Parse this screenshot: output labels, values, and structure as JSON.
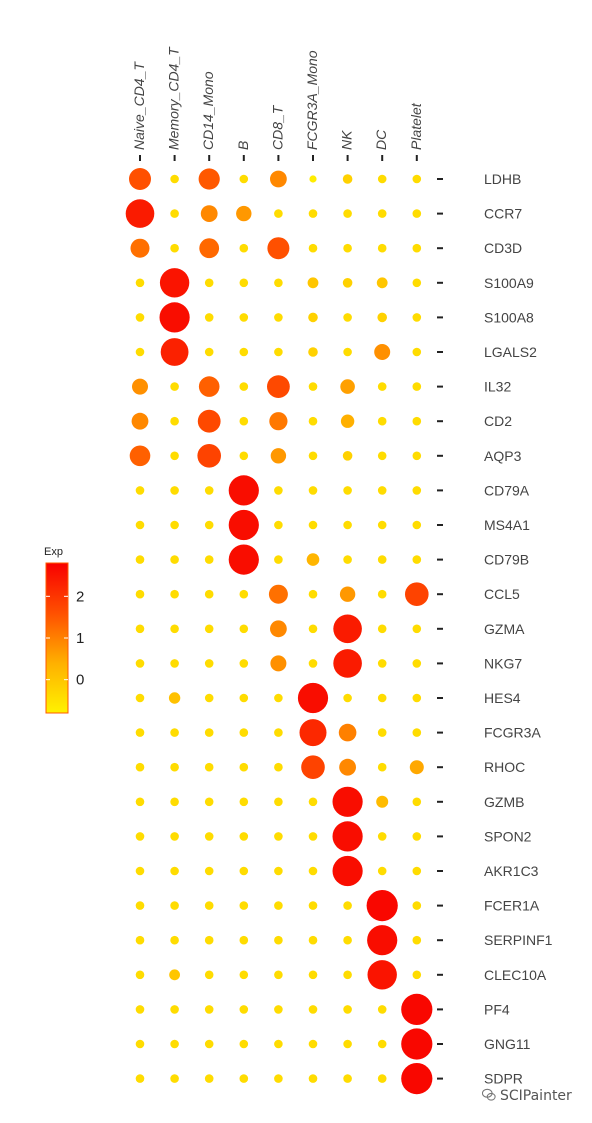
{
  "chart_data": {
    "type": "dot",
    "x_categories": [
      "Naive_CD4_T",
      "Memory_CD4_T",
      "CD14_Mono",
      "B",
      "CD8_T",
      "FCGR3A_Mono",
      "NK",
      "DC",
      "Platelet"
    ],
    "y_categories": [
      "LDHB",
      "CCR7",
      "CD3D",
      "S100A9",
      "S100A8",
      "LGALS2",
      "IL32",
      "CD2",
      "AQP3",
      "CD79A",
      "MS4A1",
      "CD79B",
      "CCL5",
      "GZMA",
      "NKG7",
      "HES4",
      "FCGR3A",
      "RHOC",
      "GZMB",
      "SPON2",
      "AKR1C3",
      "FCER1A",
      "SERPINF1",
      "CLEC10A",
      "PF4",
      "GNG11",
      "SDPR"
    ],
    "expression": [
      [
        1.6,
        -0.4,
        1.5,
        -0.4,
        0.9,
        -0.7,
        -0.2,
        -0.4,
        -0.4
      ],
      [
        2.4,
        -0.4,
        0.9,
        0.7,
        -0.4,
        -0.4,
        -0.4,
        -0.4,
        -0.4
      ],
      [
        1.2,
        -0.4,
        1.3,
        -0.4,
        1.6,
        -0.4,
        -0.4,
        -0.4,
        -0.4
      ],
      [
        -0.4,
        2.5,
        -0.4,
        -0.4,
        -0.4,
        0.0,
        -0.2,
        0.0,
        -0.4
      ],
      [
        -0.4,
        2.6,
        -0.4,
        -0.4,
        -0.4,
        -0.2,
        -0.4,
        -0.2,
        -0.4
      ],
      [
        -0.4,
        2.3,
        -0.4,
        -0.4,
        -0.4,
        -0.2,
        -0.4,
        0.8,
        -0.4
      ],
      [
        0.8,
        -0.4,
        1.4,
        -0.4,
        1.7,
        -0.4,
        0.6,
        -0.4,
        -0.4
      ],
      [
        0.9,
        -0.4,
        1.7,
        -0.4,
        1.1,
        -0.4,
        0.4,
        -0.4,
        -0.4
      ],
      [
        1.4,
        -0.4,
        1.8,
        -0.4,
        0.7,
        -0.4,
        -0.2,
        -0.4,
        -0.4
      ],
      [
        -0.4,
        -0.4,
        -0.4,
        2.6,
        -0.4,
        -0.4,
        -0.4,
        -0.4,
        -0.4
      ],
      [
        -0.4,
        -0.4,
        -0.4,
        2.6,
        -0.4,
        -0.4,
        -0.4,
        -0.4,
        -0.4
      ],
      [
        -0.4,
        -0.4,
        -0.4,
        2.6,
        -0.4,
        0.3,
        -0.4,
        -0.4,
        -0.4
      ],
      [
        -0.4,
        -0.4,
        -0.4,
        -0.4,
        1.2,
        -0.4,
        0.7,
        -0.4,
        1.8
      ],
      [
        -0.4,
        -0.4,
        -0.4,
        -0.4,
        0.9,
        -0.4,
        2.4,
        -0.4,
        -0.4
      ],
      [
        -0.4,
        -0.4,
        -0.4,
        -0.4,
        0.8,
        -0.4,
        2.4,
        -0.4,
        -0.4
      ],
      [
        -0.4,
        0.1,
        -0.4,
        -0.4,
        -0.4,
        2.6,
        -0.4,
        -0.4,
        -0.4
      ],
      [
        -0.4,
        -0.4,
        -0.4,
        -0.4,
        -0.4,
        2.2,
        1.0,
        -0.4,
        -0.4
      ],
      [
        -0.4,
        -0.4,
        -0.4,
        -0.4,
        -0.4,
        1.8,
        0.9,
        -0.4,
        0.5
      ],
      [
        -0.4,
        -0.4,
        -0.4,
        -0.4,
        -0.4,
        -0.4,
        2.6,
        0.2,
        -0.4
      ],
      [
        -0.4,
        -0.4,
        -0.4,
        -0.4,
        -0.4,
        -0.4,
        2.6,
        -0.4,
        -0.4
      ],
      [
        -0.4,
        -0.4,
        -0.4,
        -0.4,
        -0.4,
        -0.4,
        2.6,
        -0.4,
        -0.4
      ],
      [
        -0.4,
        -0.4,
        -0.4,
        -0.4,
        -0.4,
        -0.4,
        -0.4,
        2.7,
        -0.4
      ],
      [
        -0.4,
        -0.4,
        -0.4,
        -0.4,
        -0.4,
        -0.4,
        -0.4,
        2.6,
        -0.4
      ],
      [
        -0.4,
        0.0,
        -0.4,
        -0.4,
        -0.4,
        -0.4,
        -0.4,
        2.5,
        -0.4
      ],
      [
        -0.4,
        -0.4,
        -0.4,
        -0.4,
        -0.4,
        -0.4,
        -0.4,
        -0.4,
        2.7
      ],
      [
        -0.4,
        -0.4,
        -0.4,
        -0.4,
        -0.4,
        -0.4,
        -0.4,
        -0.4,
        2.7
      ],
      [
        -0.4,
        -0.4,
        -0.4,
        -0.4,
        -0.4,
        -0.4,
        -0.4,
        -0.4,
        2.7
      ]
    ],
    "legend": {
      "title": "Exp",
      "ticks": [
        0,
        1,
        2
      ],
      "range": [
        -0.8,
        2.8
      ],
      "colors": [
        "#FFF200",
        "#FFB000",
        "#FF5000",
        "#F80000"
      ],
      "border_color": "#FF5A00"
    },
    "x_axis_position": "top",
    "y_axis_position": "right",
    "grid": false,
    "legend_position": "left"
  },
  "watermark": {
    "text": "SCIPainter"
  }
}
